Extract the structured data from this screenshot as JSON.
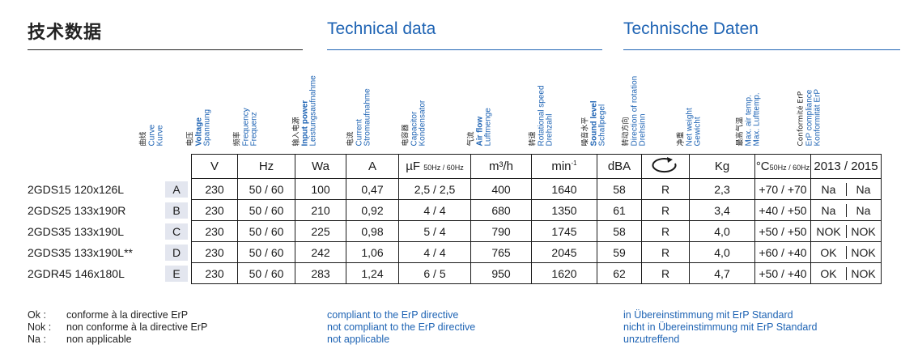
{
  "headings": {
    "zh": "技术数据",
    "en": "Technical data",
    "de": "Technische Daten"
  },
  "columns": {
    "curve": {
      "zh": "曲线",
      "en": "Curve",
      "de": "Kurve"
    },
    "voltage": {
      "zh": "电压",
      "en": "Voltage",
      "de": "Spannung"
    },
    "frequency": {
      "zh": "频率",
      "en": "Frequency",
      "de": "Frequenz"
    },
    "power": {
      "zh": "输入电源",
      "en": "Input power",
      "de": "Leistungsaufnahme"
    },
    "current": {
      "zh": "电流",
      "en": "Current",
      "de": "Stromaufnahme"
    },
    "capacitor": {
      "zh": "电容器",
      "en": "Capacitor",
      "de": "Kondensator"
    },
    "airflow": {
      "zh": "气流",
      "en": "Air flow",
      "de": "Luftmenge"
    },
    "speed": {
      "zh": "转速",
      "en": "Rotational speed",
      "de": "Drehzahl"
    },
    "sound": {
      "zh": "噪音水平",
      "en": "Sound level",
      "de": "Schallpegel"
    },
    "rotation": {
      "zh": "转动方向",
      "en": "Direction of rotation",
      "de": "Drehsinn"
    },
    "weight": {
      "zh": "净重",
      "en": "Net weight",
      "de": "Gewicht"
    },
    "temp": {
      "zh": "最高气温",
      "en": "Max. air temp.",
      "de": "Max. Lufttemp."
    },
    "erp": {
      "zh": "Conformité ErP",
      "en": "ErP compliance",
      "de": "Konformität ErP"
    }
  },
  "units": {
    "voltage": "V",
    "frequency": "Hz",
    "power": "Wa",
    "current": "A",
    "capacitor": "µF",
    "capacitor_sub": "50Hz / 60Hz",
    "airflow": "m³/h",
    "speed": "min",
    "speed_sup": "-1",
    "sound": "dBA",
    "weight": "Kg",
    "temp": "°C",
    "temp_sub": "50Hz / 60Hz",
    "erp": "2013 / 2015"
  },
  "rows": [
    {
      "model": "2GDS15 120x126L",
      "curve": "A",
      "voltage": "230",
      "frequency": "50 / 60",
      "power": "100",
      "current": "0,47",
      "capacitor": "2,5 / 2,5",
      "airflow": "400",
      "speed": "1640",
      "sound": "58",
      "rotation": "R",
      "weight": "2,3",
      "temp": "+70 / +70",
      "erp2013": "Na",
      "erp2015": "Na"
    },
    {
      "model": "2GDS25 133x190R",
      "curve": "B",
      "voltage": "230",
      "frequency": "50 / 60",
      "power": "210",
      "current": "0,92",
      "capacitor": "4 / 4",
      "airflow": "680",
      "speed": "1350",
      "sound": "61",
      "rotation": "R",
      "weight": "3,4",
      "temp": "+40 / +50",
      "erp2013": "Na",
      "erp2015": "Na"
    },
    {
      "model": "2GDS35 133x190L",
      "curve": "C",
      "voltage": "230",
      "frequency": "50 / 60",
      "power": "225",
      "current": "0,98",
      "capacitor": "5 / 4",
      "airflow": "790",
      "speed": "1745",
      "sound": "58",
      "rotation": "R",
      "weight": "4,0",
      "temp": "+50 / +50",
      "erp2013": "NOK",
      "erp2015": "NOK"
    },
    {
      "model": "2GDS35 133x190L**",
      "curve": "D",
      "voltage": "230",
      "frequency": "50 / 60",
      "power": "242",
      "current": "1,06",
      "capacitor": "4 / 4",
      "airflow": "765",
      "speed": "2045",
      "sound": "59",
      "rotation": "R",
      "weight": "4,0",
      "temp": "+60 / +40",
      "erp2013": "OK",
      "erp2015": "NOK"
    },
    {
      "model": "2GDR45 146x180L",
      "curve": "E",
      "voltage": "230",
      "frequency": "50 / 60",
      "power": "283",
      "current": "1,24",
      "capacitor": "6 / 5",
      "airflow": "950",
      "speed": "1620",
      "sound": "62",
      "rotation": "R",
      "weight": "4,7",
      "temp": "+50 / +40",
      "erp2013": "OK",
      "erp2015": "NOK"
    }
  ],
  "legend": {
    "keys": [
      "Ok :",
      "Nok :",
      "Na :"
    ],
    "fr": [
      "conforme à la directive ErP",
      "non conforme à la directive ErP",
      "non applicable"
    ],
    "en": [
      "compliant to the ErP directive",
      "not compliant to the ErP directive",
      "not applicable"
    ],
    "de": [
      "in Übereinstimmung mit ErP Standard",
      "nicht in Übereinstimmung mit ErP Standard",
      "unzutreffend"
    ]
  },
  "colors": {
    "blue": "#1f64b4",
    "curve_box": "#e3e6ef"
  }
}
